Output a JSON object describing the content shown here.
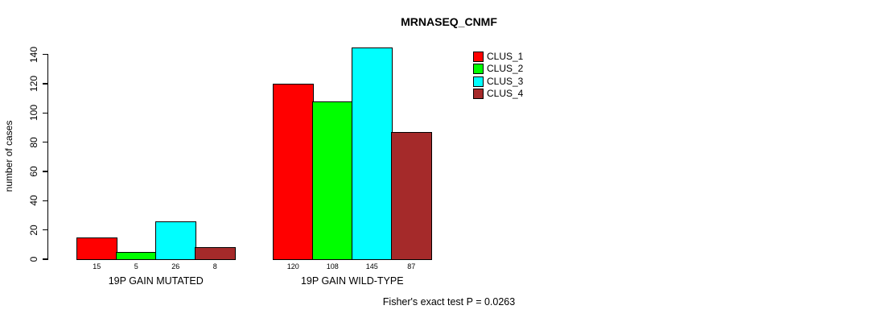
{
  "title": "MRNASEQ_CNMF",
  "y_axis_label": "number of cases",
  "footnote": "Fisher's exact test P = 0.0263",
  "legend": {
    "items": [
      {
        "label": "CLUS_1",
        "color": "#FF0000"
      },
      {
        "label": "CLUS_2",
        "color": "#00FF00"
      },
      {
        "label": "CLUS_3",
        "color": "#00FFFF"
      },
      {
        "label": "CLUS_4",
        "color": "#A52A2A"
      }
    ]
  },
  "chart_data": {
    "type": "bar",
    "title": "MRNASEQ_CNMF",
    "xlabel": "",
    "ylabel": "number of cases",
    "categories": [
      "19P GAIN MUTATED",
      "19P GAIN WILD-TYPE"
    ],
    "series": [
      {
        "name": "CLUS_1",
        "color": "#FF0000",
        "values": [
          15,
          120
        ]
      },
      {
        "name": "CLUS_2",
        "color": "#00FF00",
        "values": [
          5,
          108
        ]
      },
      {
        "name": "CLUS_3",
        "color": "#00FFFF",
        "values": [
          26,
          145
        ]
      },
      {
        "name": "CLUS_4",
        "color": "#A52A2A",
        "values": [
          8,
          87
        ]
      }
    ],
    "yticks": [
      0,
      20,
      40,
      60,
      80,
      100,
      120,
      140
    ],
    "ylim": [
      0,
      145
    ],
    "grid": false,
    "show_bar_value_labels": true,
    "legend_position": "top-right-inside",
    "annotation": "Fisher's exact test P = 0.0263",
    "colors": {
      "axis": "#000000",
      "bar_border": "#000000",
      "background": "#FFFFFF"
    }
  }
}
